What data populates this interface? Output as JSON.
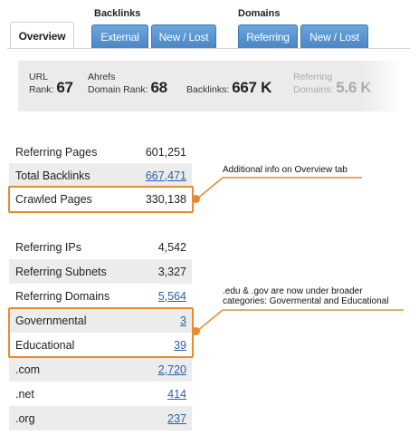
{
  "tabs": {
    "groups": {
      "backlinks": "Backlinks",
      "domains": "Domains"
    },
    "overview": "Overview",
    "external": "External",
    "new_lost_backlinks": "New / Lost",
    "referring": "Referring",
    "new_lost_domains": "New / Lost"
  },
  "stats": {
    "url_rank": {
      "label_top": "URL",
      "label": "Rank:",
      "value": "67"
    },
    "domain_rank": {
      "label_top": "Ahrefs",
      "label": "Domain Rank:",
      "value": "68"
    },
    "backlinks": {
      "label": "Backlinks:",
      "value": "667 K"
    },
    "referring_domains": {
      "label_top": "Referring",
      "label": "Domains:",
      "value": "5.6 K"
    }
  },
  "table1": [
    {
      "label": "Referring Pages",
      "value": "601,251",
      "link": false
    },
    {
      "label": "Total Backlinks",
      "value": "667,471",
      "link": true
    },
    {
      "label": "Crawled Pages",
      "value": "330,138",
      "link": false
    }
  ],
  "table2": [
    {
      "label": "Referring IPs",
      "value": "4,542",
      "link": false
    },
    {
      "label": "Referring Subnets",
      "value": "3,327",
      "link": false
    },
    {
      "label": "Referring Domains",
      "value": "5,564",
      "link": true
    },
    {
      "label": "Governmental",
      "value": "3",
      "link": true
    },
    {
      "label": "Educational",
      "value": "39",
      "link": true
    },
    {
      "label": ".com",
      "value": "2,720",
      "link": true
    },
    {
      "label": ".net",
      "value": "414",
      "link": true
    },
    {
      "label": ".org",
      "value": "237",
      "link": true
    }
  ],
  "callouts": {
    "overview_info": "Additional info on Overview tab",
    "edu_gov_line1": ".edu & .gov are now under broader",
    "edu_gov_line2": "categories: Govermental and Educational"
  },
  "colors": {
    "accent": "#e98a2c",
    "tab_blue": "#4a86c5",
    "link": "#2b5fa8"
  }
}
